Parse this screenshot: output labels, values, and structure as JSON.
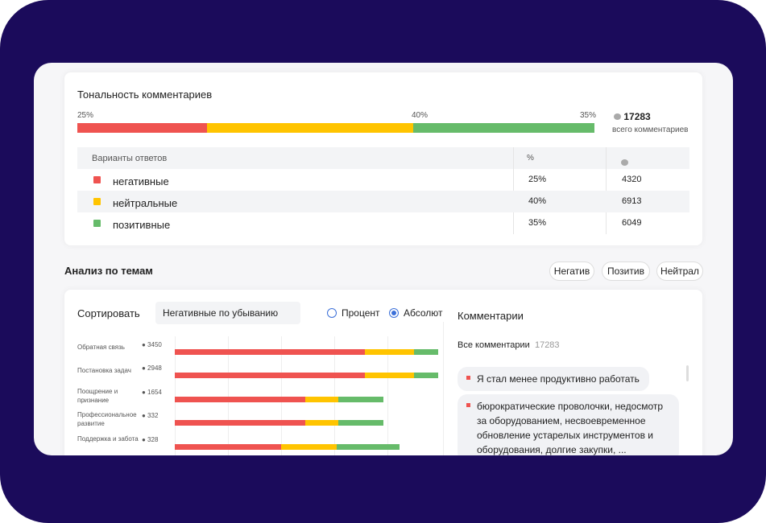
{
  "tonality": {
    "title": "Тональность комментариев",
    "total": "17283",
    "total_label": "всего комментариев",
    "segments": [
      {
        "label": "25%",
        "value": 25,
        "color": "#ef5350"
      },
      {
        "label": "40%",
        "value": 40,
        "color": "#ffc400"
      },
      {
        "label": "35%",
        "value": 35,
        "color": "#66bb6a"
      }
    ],
    "table": {
      "headers": [
        "Варианты ответов",
        "%"
      ],
      "rows": [
        {
          "name": "негативные",
          "pct": "25%",
          "count": "4320",
          "color": "#ef5350"
        },
        {
          "name": "нейтральные",
          "pct": "40%",
          "count": "6913",
          "color": "#ffc400"
        },
        {
          "name": "позитивные",
          "pct": "35%",
          "count": "6049",
          "color": "#66bb6a"
        }
      ]
    }
  },
  "topics": {
    "title": "Анализ по темам",
    "filters": [
      "Негатив",
      "Позитив",
      "Нейтрал"
    ],
    "sort_label": "Сортировать",
    "sort_value": "Негативные по убыванию",
    "radio_percent": "Процент",
    "radio_absolute": "Абсолют"
  },
  "chart_data": {
    "type": "bar",
    "stacked": true,
    "orientation": "horizontal",
    "xlim": [
      0,
      100
    ],
    "categories": [
      "Обратная связь",
      "Постановка задач",
      "Поощрение и признание",
      "Профессиональное развитие",
      "Поддержка и забота"
    ],
    "counts": [
      "3450",
      "2948",
      "1654",
      "332",
      "328"
    ],
    "series": [
      {
        "name": "негативные",
        "color": "#ef5350",
        "values": [
          71.5,
          71.5,
          49,
          49,
          40
        ]
      },
      {
        "name": "нейтральные",
        "color": "#ffc400",
        "values": [
          18.5,
          18.5,
          12.5,
          12.5,
          21
        ]
      },
      {
        "name": "позитивные",
        "color": "#66bb6a",
        "values": [
          9,
          9,
          17,
          17,
          23.5
        ]
      }
    ]
  },
  "comments": {
    "title": "Комментарии",
    "all_label": "Все комментарии",
    "all_count": "17283",
    "items": [
      "Я стал менее продуктивно работать",
      "бюрократические проволочки, недосмотр за оборудованием, несвоевременное обновление устарелых инструментов и оборудования, долгие закупки, ..."
    ]
  }
}
